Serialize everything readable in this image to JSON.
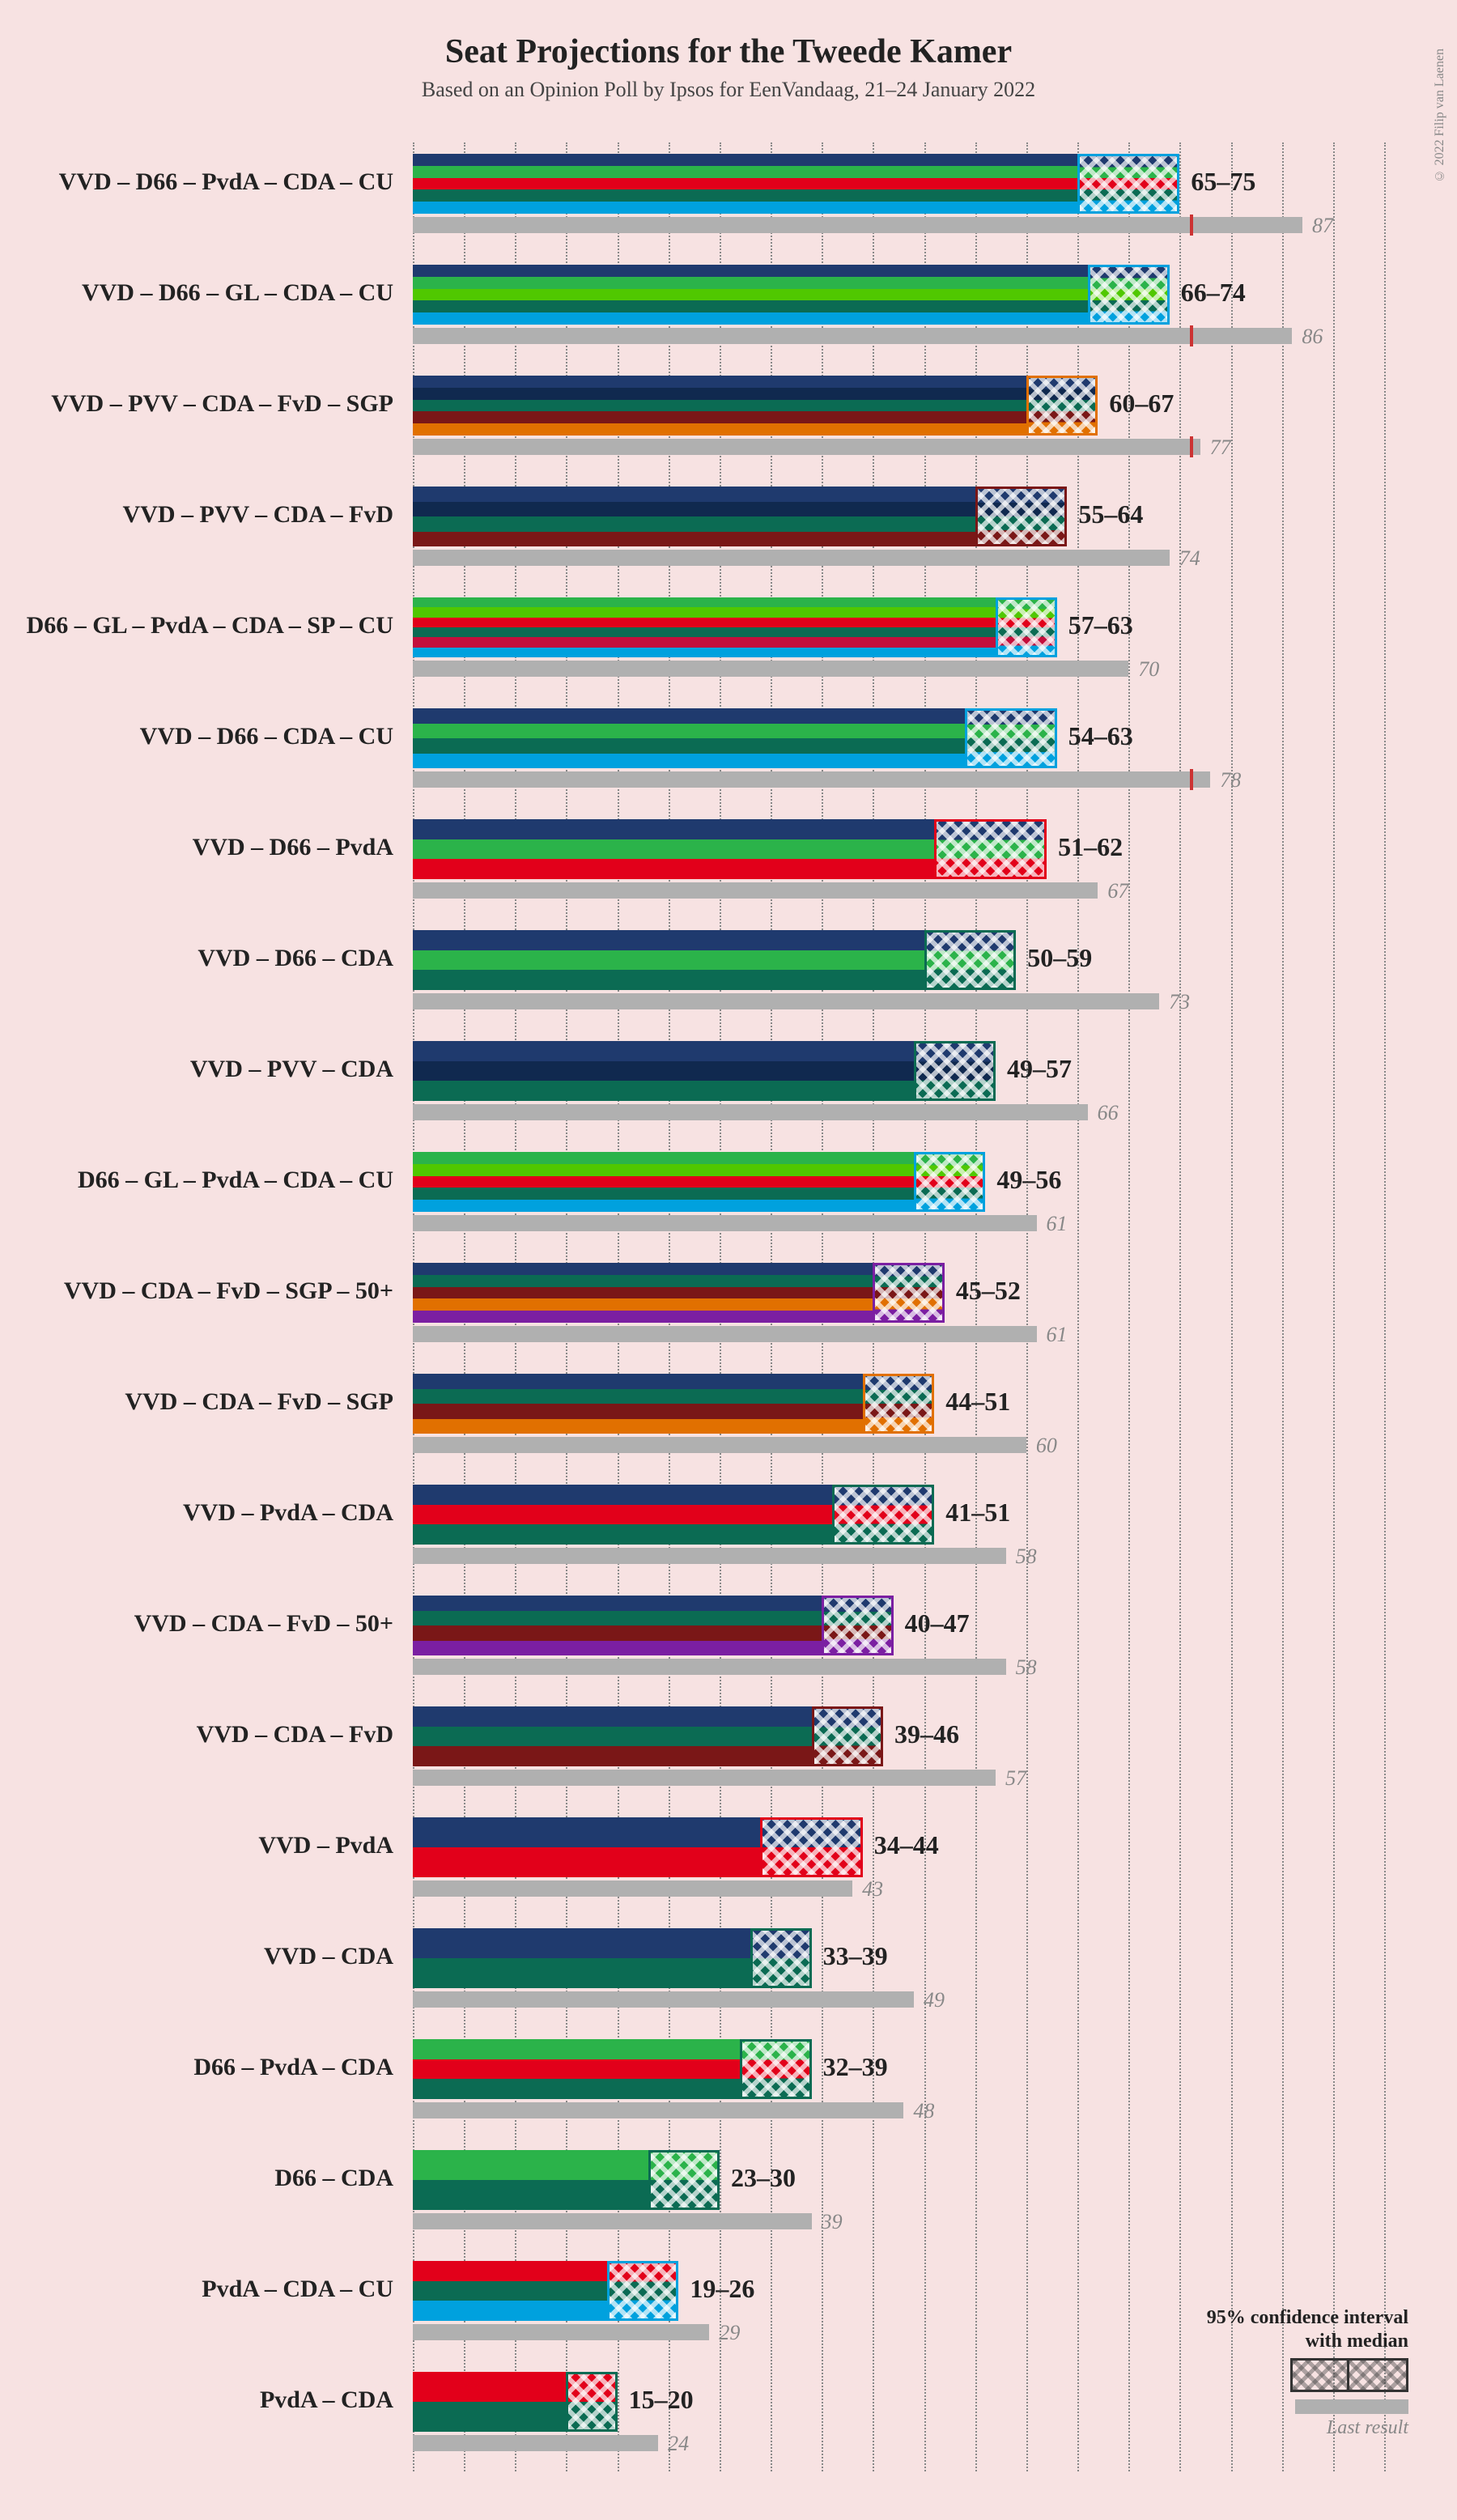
{
  "title": "Seat Projections for the Tweede Kamer",
  "subtitle": "Based on an Opinion Poll by Ipsos for EenVandaag, 21–24 January 2022",
  "copyright": "© 2022 Filip van Laenen",
  "background_color": "#f7e2e2",
  "axis": {
    "max_seats": 95,
    "tick_step": 5,
    "majority": 76
  },
  "party_colors": {
    "VVD": "#1f3a6e",
    "D66": "#2bb34a",
    "PvdA": "#e2001a",
    "CDA": "#0b6b53",
    "CU": "#00a1de",
    "GL": "#50c800",
    "PVV": "#10294f",
    "FvD": "#7a1717",
    "SGP": "#e17000",
    "SP": "#c40f3c",
    "50+": "#7b1fa2"
  },
  "legend": {
    "ci_line1": "95% confidence interval",
    "ci_line2": "with median",
    "last": "Last result"
  },
  "rows": [
    {
      "label": "VVD – D66 – PvdA – CDA – CU",
      "parties": [
        "VVD",
        "D66",
        "PvdA",
        "CDA",
        "CU"
      ],
      "lo": 65,
      "hi": 75,
      "median": 70,
      "range_text": "65–75",
      "last": 87,
      "show_majority": true
    },
    {
      "label": "VVD – D66 – GL – CDA – CU",
      "parties": [
        "VVD",
        "D66",
        "GL",
        "CDA",
        "CU"
      ],
      "lo": 66,
      "hi": 74,
      "median": 70,
      "range_text": "66–74",
      "last": 86,
      "show_majority": true
    },
    {
      "label": "VVD – PVV – CDA – FvD – SGP",
      "parties": [
        "VVD",
        "PVV",
        "CDA",
        "FvD",
        "SGP"
      ],
      "lo": 60,
      "hi": 67,
      "median": 63,
      "range_text": "60–67",
      "last": 77,
      "show_majority": true
    },
    {
      "label": "VVD – PVV – CDA – FvD",
      "parties": [
        "VVD",
        "PVV",
        "CDA",
        "FvD"
      ],
      "lo": 55,
      "hi": 64,
      "median": 59,
      "range_text": "55–64",
      "last": 74
    },
    {
      "label": "D66 – GL – PvdA – CDA – SP – CU",
      "parties": [
        "D66",
        "GL",
        "PvdA",
        "CDA",
        "SP",
        "CU"
      ],
      "lo": 57,
      "hi": 63,
      "median": 60,
      "range_text": "57–63",
      "last": 70
    },
    {
      "label": "VVD – D66 – CDA – CU",
      "parties": [
        "VVD",
        "D66",
        "CDA",
        "CU"
      ],
      "lo": 54,
      "hi": 63,
      "median": 58,
      "range_text": "54–63",
      "last": 78,
      "show_majority": true
    },
    {
      "label": "VVD – D66 – PvdA",
      "parties": [
        "VVD",
        "D66",
        "PvdA"
      ],
      "lo": 51,
      "hi": 62,
      "median": 56,
      "range_text": "51–62",
      "last": 67
    },
    {
      "label": "VVD – D66 – CDA",
      "parties": [
        "VVD",
        "D66",
        "CDA"
      ],
      "lo": 50,
      "hi": 59,
      "median": 54,
      "range_text": "50–59",
      "last": 73
    },
    {
      "label": "VVD – PVV – CDA",
      "parties": [
        "VVD",
        "PVV",
        "CDA"
      ],
      "lo": 49,
      "hi": 57,
      "median": 53,
      "range_text": "49–57",
      "last": 66
    },
    {
      "label": "D66 – GL – PvdA – CDA – CU",
      "parties": [
        "D66",
        "GL",
        "PvdA",
        "CDA",
        "CU"
      ],
      "lo": 49,
      "hi": 56,
      "median": 52,
      "range_text": "49–56",
      "last": 61
    },
    {
      "label": "VVD – CDA – FvD – SGP – 50+",
      "parties": [
        "VVD",
        "CDA",
        "FvD",
        "SGP",
        "50+"
      ],
      "lo": 45,
      "hi": 52,
      "median": 48,
      "range_text": "45–52",
      "last": 61
    },
    {
      "label": "VVD – CDA – FvD – SGP",
      "parties": [
        "VVD",
        "CDA",
        "FvD",
        "SGP"
      ],
      "lo": 44,
      "hi": 51,
      "median": 47,
      "range_text": "44–51",
      "last": 60
    },
    {
      "label": "VVD – PvdA – CDA",
      "parties": [
        "VVD",
        "PvdA",
        "CDA"
      ],
      "lo": 41,
      "hi": 51,
      "median": 46,
      "range_text": "41–51",
      "last": 58
    },
    {
      "label": "VVD – CDA – FvD – 50+",
      "parties": [
        "VVD",
        "CDA",
        "FvD",
        "50+"
      ],
      "lo": 40,
      "hi": 47,
      "median": 43,
      "range_text": "40–47",
      "last": 58
    },
    {
      "label": "VVD – CDA – FvD",
      "parties": [
        "VVD",
        "CDA",
        "FvD"
      ],
      "lo": 39,
      "hi": 46,
      "median": 42,
      "range_text": "39–46",
      "last": 57
    },
    {
      "label": "VVD – PvdA",
      "parties": [
        "VVD",
        "PvdA"
      ],
      "lo": 34,
      "hi": 44,
      "median": 39,
      "range_text": "34–44",
      "last": 43
    },
    {
      "label": "VVD – CDA",
      "parties": [
        "VVD",
        "CDA"
      ],
      "lo": 33,
      "hi": 39,
      "median": 36,
      "range_text": "33–39",
      "last": 49
    },
    {
      "label": "D66 – PvdA – CDA",
      "parties": [
        "D66",
        "PvdA",
        "CDA"
      ],
      "lo": 32,
      "hi": 39,
      "median": 35,
      "range_text": "32–39",
      "last": 48
    },
    {
      "label": "D66 – CDA",
      "parties": [
        "D66",
        "CDA"
      ],
      "lo": 23,
      "hi": 30,
      "median": 26,
      "range_text": "23–30",
      "last": 39
    },
    {
      "label": "PvdA – CDA – CU",
      "parties": [
        "PvdA",
        "CDA",
        "CU"
      ],
      "lo": 19,
      "hi": 26,
      "median": 22,
      "range_text": "19–26",
      "last": 29
    },
    {
      "label": "PvdA – CDA",
      "parties": [
        "PvdA",
        "CDA"
      ],
      "lo": 15,
      "hi": 20,
      "median": 17,
      "range_text": "15–20",
      "last": 24
    }
  ]
}
